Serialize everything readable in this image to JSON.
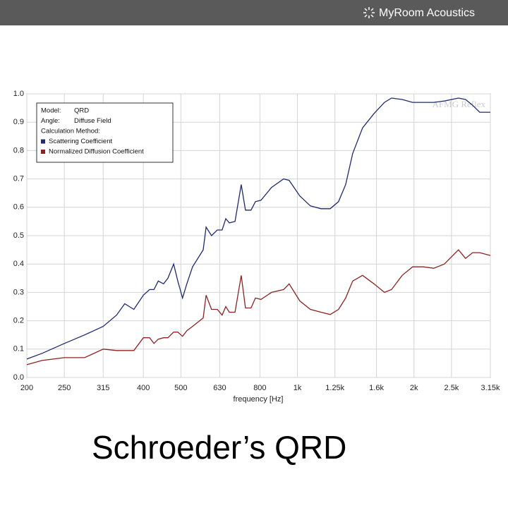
{
  "header": {
    "brand": "MyRoom Acoustics"
  },
  "chart_data": {
    "type": "line",
    "title": "Schroeder’s QRD",
    "watermark": "AFMG Reflex",
    "xlabel": "frequency [Hz]",
    "xscale": "log",
    "xlim": [
      200,
      3150
    ],
    "xticks": [
      200,
      250,
      315,
      400,
      500,
      630,
      800,
      {
        "value": 1000,
        "label": "1k"
      },
      {
        "value": 1250,
        "label": "1.25k"
      },
      {
        "value": 1600,
        "label": "1.6k"
      },
      {
        "value": 2000,
        "label": "2k"
      },
      {
        "value": 2500,
        "label": "2.5k"
      },
      {
        "value": 3150,
        "label": "3.15k"
      }
    ],
    "ylim": [
      0,
      1
    ],
    "yticks": [
      {
        "value": 0,
        "label": "0.0"
      },
      0.1,
      0.2,
      0.3,
      0.4,
      0.5,
      0.6,
      0.7,
      0.8,
      0.9,
      {
        "value": 1,
        "label": "1.0"
      }
    ],
    "grid": true,
    "legend_info": [
      {
        "label": "Model:",
        "value": "QRD"
      },
      {
        "label": "Angle:",
        "value": "Diffuse Field"
      },
      {
        "label": "Calculation Method:"
      }
    ],
    "x": [
      200,
      219,
      250,
      282,
      315,
      341,
      358,
      378,
      400,
      415,
      426,
      437,
      451,
      463,
      479,
      491,
      505,
      518,
      536,
      571,
      581,
      600,
      621,
      639,
      653,
      667,
      690,
      716,
      734,
      759,
      779,
      805,
      857,
      921,
      952,
      1014,
      1080,
      1150,
      1215,
      1277,
      1332,
      1389,
      1473,
      1576,
      1678,
      1750,
      1864,
      1984,
      2113,
      2250,
      2396,
      2606,
      2718,
      2834,
      2956,
      3150
    ],
    "series": [
      {
        "name": "Scattering Coefficient",
        "color": "#1f2a6e",
        "values": [
          0.065,
          0.085,
          0.12,
          0.15,
          0.18,
          0.22,
          0.26,
          0.24,
          0.29,
          0.31,
          0.31,
          0.34,
          0.33,
          0.35,
          0.4,
          0.34,
          0.28,
          0.33,
          0.39,
          0.45,
          0.53,
          0.5,
          0.52,
          0.52,
          0.56,
          0.545,
          0.55,
          0.68,
          0.59,
          0.59,
          0.62,
          0.625,
          0.67,
          0.7,
          0.695,
          0.64,
          0.605,
          0.595,
          0.595,
          0.62,
          0.68,
          0.79,
          0.88,
          0.93,
          0.97,
          0.985,
          0.98,
          0.97,
          0.97,
          0.97,
          0.975,
          0.985,
          0.98,
          0.96,
          0.935,
          0.935
        ]
      },
      {
        "name": "Normalized Diffusion Coefficient",
        "color": "#8b2323",
        "values": [
          0.045,
          0.06,
          0.07,
          0.07,
          0.1,
          0.095,
          0.095,
          0.095,
          0.14,
          0.14,
          0.12,
          0.135,
          0.14,
          0.14,
          0.16,
          0.16,
          0.145,
          0.165,
          0.18,
          0.21,
          0.29,
          0.24,
          0.24,
          0.22,
          0.25,
          0.23,
          0.23,
          0.36,
          0.245,
          0.245,
          0.28,
          0.275,
          0.3,
          0.31,
          0.33,
          0.27,
          0.24,
          0.23,
          0.222,
          0.24,
          0.28,
          0.34,
          0.36,
          0.33,
          0.3,
          0.31,
          0.36,
          0.39,
          0.39,
          0.385,
          0.4,
          0.45,
          0.42,
          0.44,
          0.44,
          0.43
        ]
      }
    ]
  }
}
